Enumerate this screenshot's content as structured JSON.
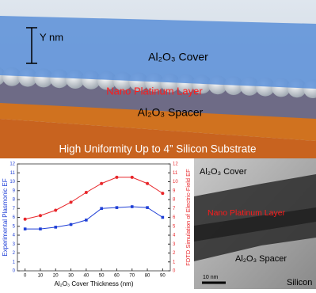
{
  "schematic": {
    "thickness_label": "Y nm",
    "cover_label": "Al₂O₃ Cover",
    "platinum_label": "Nano Platinum Layer",
    "spacer_label": "Al₂O₃ Spacer",
    "banner": "High Uniformity Up to 4” Silicon Substrate"
  },
  "chart_data": {
    "type": "line",
    "x": [
      0,
      10,
      20,
      30,
      40,
      50,
      60,
      70,
      80,
      90
    ],
    "xlabel": "Al₂O₃ Cover Thickness (nm)",
    "ylabel": "Experimental Plasmonic EF",
    "y2label": "FDTD Simulation of Electric-Field EF",
    "series": [
      {
        "name": "Experimental Plasmonic EF",
        "color": "#1f3fd6",
        "marker": "square",
        "values": [
          4.7,
          4.7,
          4.9,
          5.2,
          5.7,
          7.0,
          7.1,
          7.2,
          7.1,
          6.0
        ]
      },
      {
        "name": "FDTD Simulation of Electric-Field EF",
        "color": "#e8262a",
        "marker": "circle",
        "axis": "y2",
        "values": [
          5.8,
          6.2,
          6.8,
          7.7,
          8.8,
          9.8,
          10.5,
          10.5,
          9.8,
          8.7
        ]
      }
    ],
    "xlim": [
      -5,
      95
    ],
    "xticks": [
      0,
      10,
      20,
      30,
      40,
      50,
      60,
      70,
      80,
      90
    ],
    "ylim": [
      0,
      12
    ],
    "yticks": [
      0,
      1,
      2,
      3,
      4,
      5,
      6,
      7,
      8,
      9,
      10,
      11,
      12
    ],
    "y2lim": [
      0,
      12
    ],
    "y2ticks": [
      0,
      1,
      2,
      3,
      4,
      5,
      6,
      7,
      8,
      9,
      10,
      11,
      12
    ],
    "grid": false
  },
  "tem": {
    "cover_label": "Al₂O₃ Cover",
    "platinum_label": "Nano Platinum Layer",
    "spacer_label": "Al₂O₃ Spacer",
    "scale_label": "10 nm",
    "substrate_label": "Silicon"
  }
}
